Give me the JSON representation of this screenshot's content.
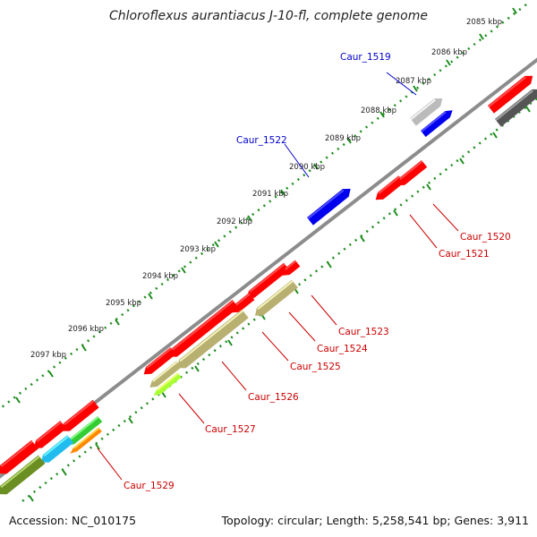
{
  "title": "Chloroflexus aurantiacus J-10-fl, complete genome",
  "footer": {
    "accession": "Accession: NC_010175",
    "summary": "Topology: circular; Length: 5,258,541 bp; Genes: 3,911"
  },
  "scale_ticks": [
    "2085 kbp",
    "2086 kbp",
    "2087 kbp",
    "2088 kbp",
    "2089 kbp",
    "2090 kbp",
    "2091 kbp",
    "2092 kbp",
    "2093 kbp",
    "2094 kbp",
    "2095 kbp",
    "2096 kbp",
    "2097 kbp"
  ],
  "colors": {
    "red": "#ff0000",
    "blue": "#0000ee",
    "gray": "#bbbbbb",
    "darkgray": "#555555",
    "olive": "#b8b070",
    "darkolive": "#6b8e23",
    "lime": "#aaff33",
    "green": "#33cc33",
    "cyan": "#22bbee",
    "orange": "#ff8800",
    "backbone": "#8c8c8c",
    "dots": "#1c8c1c",
    "label_forward": "#0000cc",
    "label_reverse": "#cc0000"
  },
  "genes": [
    {
      "id": "Caur_1519",
      "strand": "forward",
      "color": "gray"
    },
    {
      "id": "Caur_1522",
      "strand": "forward",
      "color": "blue"
    },
    {
      "id": "Caur_1520",
      "strand": "reverse",
      "color": "red"
    },
    {
      "id": "Caur_1521",
      "strand": "reverse",
      "color": "red"
    },
    {
      "id": "Caur_1523",
      "strand": "reverse",
      "color": "red"
    },
    {
      "id": "Caur_1524",
      "strand": "reverse",
      "color": "olive"
    },
    {
      "id": "Caur_1525",
      "strand": "reverse",
      "color": "red"
    },
    {
      "id": "Caur_1526",
      "strand": "reverse",
      "color": "olive"
    },
    {
      "id": "Caur_1527",
      "strand": "reverse",
      "color": "lime"
    },
    {
      "id": "Caur_1529",
      "strand": "reverse",
      "color": "orange"
    }
  ]
}
